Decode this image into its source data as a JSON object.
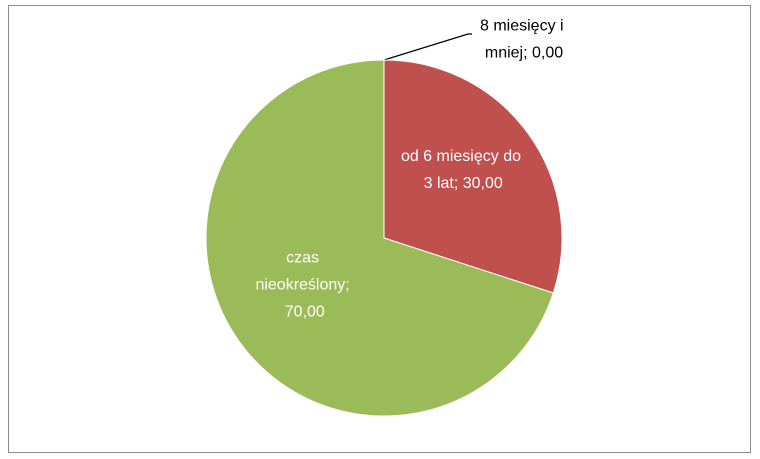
{
  "chart_data": {
    "type": "pie",
    "labels": [
      "8 miesięcy i mniej; 0,00",
      "od 6 miesięcy do 3 lat; 30,00",
      "czas nieokreślony; 70,00"
    ],
    "values": [
      0,
      30,
      70
    ],
    "colors": [
      "#4f81bd",
      "#c0504d",
      "#9bbb59"
    ]
  }
}
